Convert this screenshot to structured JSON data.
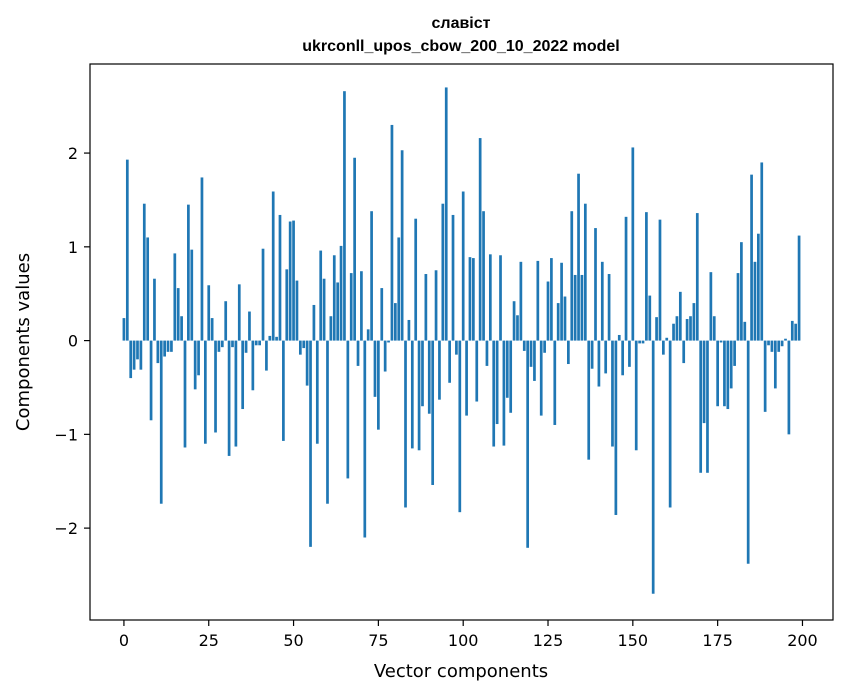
{
  "chart_data": {
    "type": "bar",
    "title_line1": "славіст",
    "title_line2": "ukrconll_upos_cbow_200_10_2022 model",
    "xlabel": "Vector components",
    "ylabel": "Components values",
    "xlim": [
      -10,
      209
    ],
    "ylim": [
      -2.98,
      2.95
    ],
    "xticks": [
      0,
      25,
      50,
      75,
      100,
      125,
      150,
      175,
      200
    ],
    "xtick_labels": [
      "0",
      "25",
      "50",
      "75",
      "100",
      "125",
      "150",
      "175",
      "200"
    ],
    "yticks": [
      -2,
      -1,
      0,
      1,
      2
    ],
    "ytick_labels": [
      "−2",
      "−1",
      "0",
      "1",
      "2"
    ],
    "grid": false,
    "bar_color": "#1f77b4",
    "values": [
      0.24,
      1.93,
      -0.4,
      -0.31,
      -0.2,
      -0.31,
      1.46,
      1.1,
      -0.85,
      0.66,
      -0.24,
      -1.74,
      -0.17,
      -0.12,
      -0.12,
      0.93,
      0.56,
      0.26,
      -1.14,
      1.45,
      0.97,
      -0.52,
      -0.37,
      1.74,
      -1.1,
      0.59,
      0.24,
      -0.98,
      -0.12,
      -0.07,
      0.42,
      -1.23,
      -0.07,
      -1.13,
      0.6,
      -0.73,
      -0.13,
      0.31,
      -0.53,
      -0.05,
      -0.05,
      0.98,
      -0.32,
      0.05,
      1.59,
      0.04,
      1.34,
      -1.07,
      0.76,
      1.27,
      1.28,
      0.64,
      -0.15,
      -0.08,
      -0.48,
      -2.2,
      0.38,
      -1.1,
      0.96,
      0.66,
      -1.74,
      0.26,
      0.91,
      0.62,
      1.01,
      2.66,
      -1.47,
      0.72,
      1.95,
      -0.27,
      0.74,
      -2.1,
      0.12,
      1.38,
      -0.6,
      -0.95,
      0.56,
      -0.33,
      -0.02,
      2.3,
      0.4,
      1.1,
      2.03,
      -1.78,
      0.22,
      -1.15,
      1.3,
      -1.17,
      -0.7,
      0.71,
      -0.78,
      -1.54,
      0.75,
      -0.63,
      1.46,
      2.7,
      -0.45,
      1.34,
      -0.15,
      -1.83,
      1.59,
      -0.8,
      0.89,
      0.88,
      -0.65,
      2.16,
      1.38,
      -0.27,
      0.92,
      -1.13,
      -0.89,
      0.91,
      -1.12,
      -0.61,
      -0.77,
      0.42,
      0.27,
      0.84,
      -0.11,
      -2.21,
      -0.28,
      -0.43,
      0.85,
      -0.8,
      -0.13,
      0.63,
      0.88,
      -0.9,
      0.4,
      0.83,
      0.47,
      -0.25,
      1.38,
      0.7,
      1.78,
      0.7,
      1.46,
      -1.27,
      -0.3,
      1.2,
      -0.49,
      0.84,
      -0.35,
      0.71,
      -1.13,
      -1.86,
      0.06,
      -0.37,
      1.32,
      -0.28,
      2.06,
      -1.17,
      -0.03,
      -0.03,
      1.37,
      0.48,
      -2.7,
      0.25,
      1.29,
      -0.15,
      0.03,
      -1.78,
      0.18,
      0.26,
      0.52,
      -0.24,
      0.23,
      0.26,
      0.4,
      1.36,
      -1.41,
      -0.88,
      -1.41,
      0.73,
      0.26,
      -0.7,
      -0.02,
      -0.7,
      -0.73,
      -0.51,
      -0.27,
      0.72,
      1.05,
      0.2,
      -2.38,
      1.77,
      0.84,
      1.14,
      1.9,
      -0.76,
      -0.05,
      -0.12,
      -0.51,
      -0.12,
      -0.06,
      0.02,
      -1.0,
      0.21,
      0.18,
      1.12
    ]
  }
}
